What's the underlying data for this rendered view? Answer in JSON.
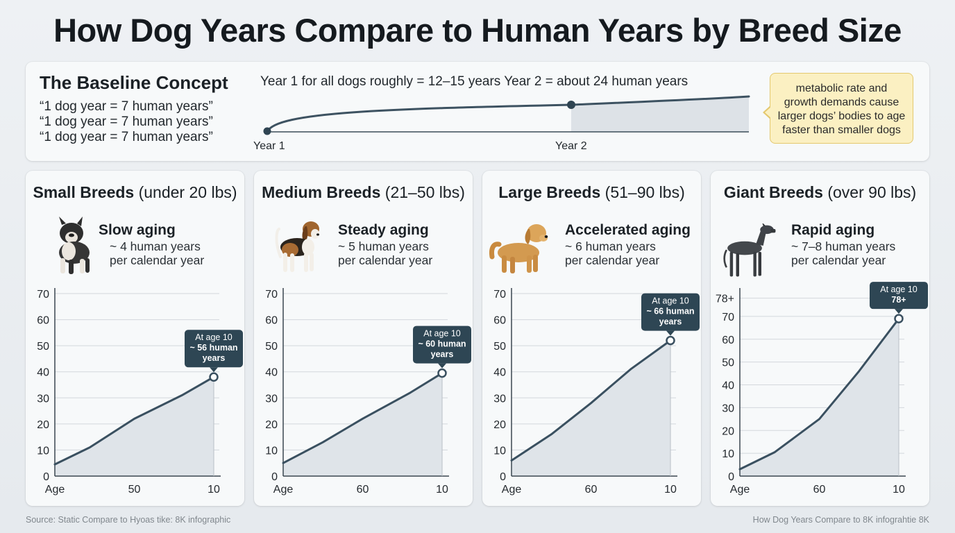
{
  "title": "How Dog Years Compare to Human Years by Breed Size",
  "baseline": {
    "heading": "The Baseline Concept",
    "lines": [
      "“1 dog year = 7 human years”",
      "“1 dog year = 7 human years”",
      "“1 dog year = 7 human years”"
    ],
    "note": "Year 1 for all dogs roughly = 12–15 years Year 2 = about 24 human years",
    "axis_labels": [
      "Year 1",
      "Year 2"
    ],
    "callout": [
      "metabolic rate and",
      "growth demands cause",
      "larger dogs’ bodies to age",
      "faster than smaller dogs"
    ]
  },
  "colors": {
    "line": "#3a5060",
    "fill": "#dfe4e9",
    "badge": "#2e4654",
    "grid": "#d3d8dc",
    "callout_bg": "#fbf0c2"
  },
  "chart_data": [
    {
      "type": "area",
      "card_name": "Small Breeds",
      "card_range": "(under 20 lbs)",
      "dog_icon": "french-bulldog-icon",
      "aging_title": "Slow aging",
      "aging_rate": "~ 4 human years",
      "aging_unit": "per calendar year",
      "ylim": [
        0,
        70
      ],
      "y_ticks": [
        "0",
        "10",
        "20",
        "30",
        "40",
        "50",
        "60",
        "70"
      ],
      "x_tick_labels": [
        "Age",
        "50",
        "10"
      ],
      "points": [
        [
          0,
          4.5
        ],
        [
          0.22,
          11
        ],
        [
          0.5,
          22
        ],
        [
          0.8,
          31
        ],
        [
          1,
          38
        ]
      ],
      "annotation": [
        "At age 10",
        "~ 56 human",
        "years"
      ]
    },
    {
      "type": "area",
      "card_name": "Medium Breeds",
      "card_range": "(21–50 lbs)",
      "dog_icon": "beagle-icon",
      "aging_title": "Steady aging",
      "aging_rate": "~ 5 human years",
      "aging_unit": "per calendar year",
      "ylim": [
        0,
        70
      ],
      "y_ticks": [
        "0",
        "10",
        "20",
        "30",
        "40",
        "50",
        "60",
        "70"
      ],
      "x_tick_labels": [
        "Age",
        "60",
        "10"
      ],
      "points": [
        [
          0,
          5
        ],
        [
          0.25,
          13
        ],
        [
          0.5,
          22
        ],
        [
          0.8,
          32
        ],
        [
          1,
          39.5
        ]
      ],
      "annotation": [
        "At age 10",
        "~ 60 human",
        "years"
      ]
    },
    {
      "type": "area",
      "card_name": "Large Breeds",
      "card_range": "(51–90 lbs)",
      "dog_icon": "golden-retriever-icon",
      "aging_title": "Accelerated aging",
      "aging_rate": "~ 6 human years",
      "aging_unit": "per calendar year",
      "ylim": [
        0,
        70
      ],
      "y_ticks": [
        "0",
        "10",
        "20",
        "30",
        "40",
        "50",
        "60",
        "70"
      ],
      "x_tick_labels": [
        "Age",
        "60",
        "10"
      ],
      "points": [
        [
          0,
          6
        ],
        [
          0.25,
          16
        ],
        [
          0.5,
          28
        ],
        [
          0.75,
          41
        ],
        [
          1,
          52
        ]
      ],
      "annotation": [
        "At age 10",
        "~ 66 human",
        "years"
      ]
    },
    {
      "type": "area",
      "card_name": "Giant Breeds",
      "card_range": "(over 90 lbs)",
      "dog_icon": "great-dane-icon",
      "aging_title": "Rapid aging",
      "aging_rate": "~ 7–8 human years",
      "aging_unit": "per calendar year",
      "ylim": [
        0,
        80
      ],
      "y_ticks": [
        "0",
        "10",
        "20",
        "30",
        "40",
        "50",
        "60",
        "70",
        "78+"
      ],
      "x_tick_labels": [
        "Age",
        "60",
        "10"
      ],
      "points": [
        [
          0,
          3
        ],
        [
          0.22,
          10.5
        ],
        [
          0.5,
          25
        ],
        [
          0.75,
          46
        ],
        [
          1,
          69
        ]
      ],
      "annotation": [
        "At age 10",
        "78+"
      ]
    }
  ],
  "footer": {
    "source": "Source: Static Compare to Hyoas tike: 8K infographic",
    "credit": "How Dog Years Compare to 8K infograhtie 8K"
  }
}
